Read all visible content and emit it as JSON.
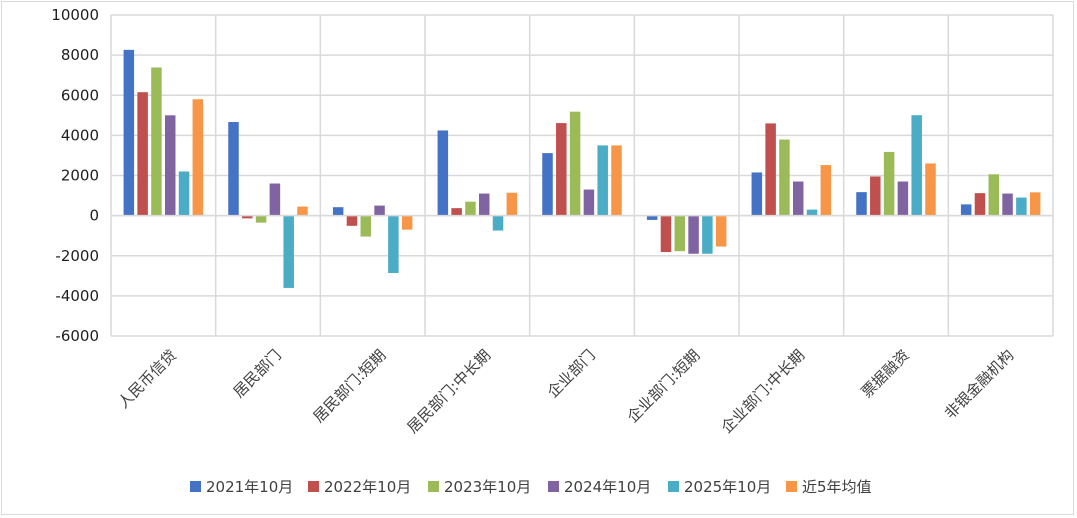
{
  "chart_data": {
    "type": "bar",
    "title": "",
    "xlabel": "",
    "ylabel": "",
    "ylim": [
      -6000,
      10000
    ],
    "yticks": [
      10000,
      8000,
      6000,
      4000,
      2000,
      0,
      -2000,
      -4000,
      -6000
    ],
    "grid": true,
    "legend_position": "bottom",
    "categories": [
      "人民币信贷",
      "居民部门",
      "居民部门:短期",
      "居民部门:中长期",
      "企业部门",
      "企业部门:短期",
      "企业部门:中长期",
      "票据融资",
      "非银金融机构"
    ],
    "series": [
      {
        "name": "2021年10月",
        "color": "#4472c4",
        "values": [
          8262,
          4665,
          420,
          4245,
          3116,
          -214,
          2152,
          1170,
          560
        ]
      },
      {
        "name": "2022年10月",
        "color": "#c0504d",
        "values": [
          6152,
          -136,
          -509,
          373,
          4612,
          -1817,
          4597,
          1950,
          1120
        ]
      },
      {
        "name": "2023年10月",
        "color": "#9bbb59",
        "values": [
          7384,
          -350,
          -1044,
          694,
          5181,
          -1771,
          3792,
          3175,
          2060
        ]
      },
      {
        "name": "2024年10月",
        "color": "#8064a2",
        "values": [
          5000,
          1600,
          500,
          1100,
          1300,
          -1900,
          1700,
          1700,
          1100
        ]
      },
      {
        "name": "2025年10月",
        "color": "#4bacc6",
        "values": [
          2200,
          -3604,
          -2860,
          -744,
          3500,
          -1900,
          300,
          5006,
          900
        ]
      },
      {
        "name": "近5年均值",
        "color": "#f79646",
        "values": [
          5800,
          450,
          -700,
          1140,
          3500,
          -1540,
          2520,
          2600,
          1160
        ]
      }
    ]
  }
}
